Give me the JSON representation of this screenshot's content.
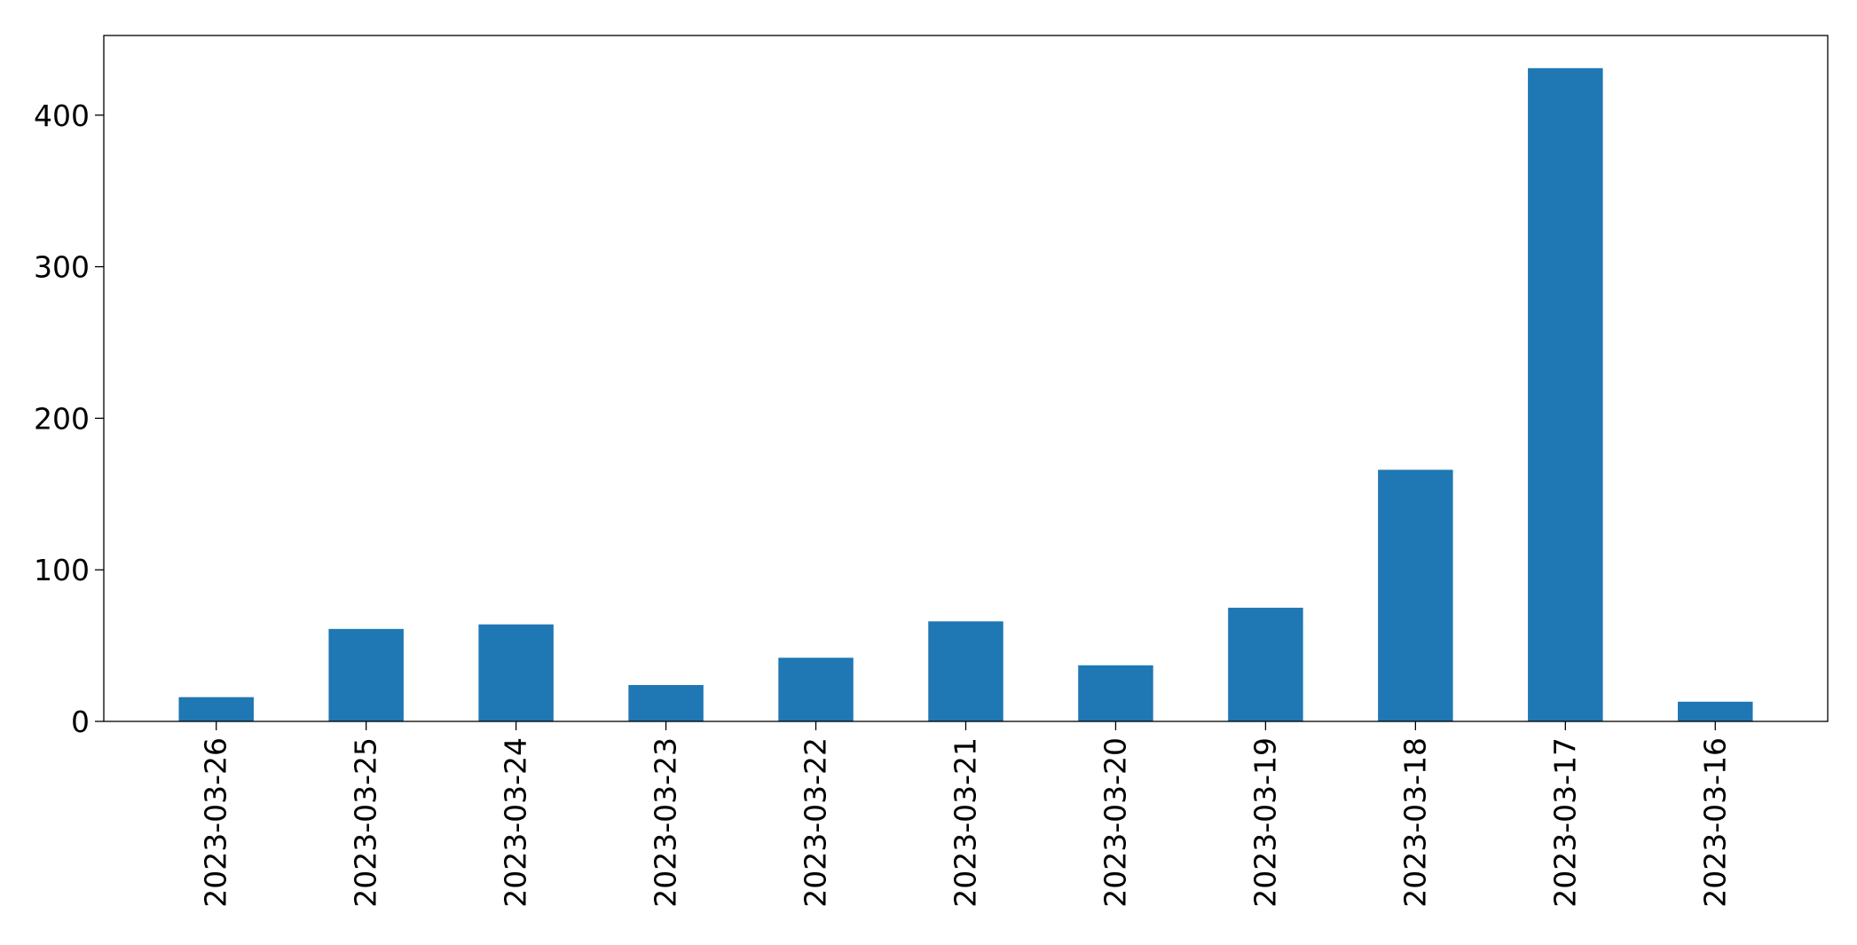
{
  "chart_data": {
    "type": "bar",
    "title": "",
    "xlabel": "",
    "ylabel": "",
    "categories": [
      "2023-03-26",
      "2023-03-25",
      "2023-03-24",
      "2023-03-23",
      "2023-03-22",
      "2023-03-21",
      "2023-03-20",
      "2023-03-19",
      "2023-03-18",
      "2023-03-17",
      "2023-03-16"
    ],
    "values": [
      16,
      61,
      64,
      24,
      42,
      66,
      37,
      75,
      166,
      431,
      13
    ],
    "ylim": [
      0,
      452.55
    ],
    "yticks": [
      0,
      100,
      200,
      300,
      400
    ],
    "bar_color": "#1f77b4",
    "grid": false,
    "legend": "none"
  }
}
